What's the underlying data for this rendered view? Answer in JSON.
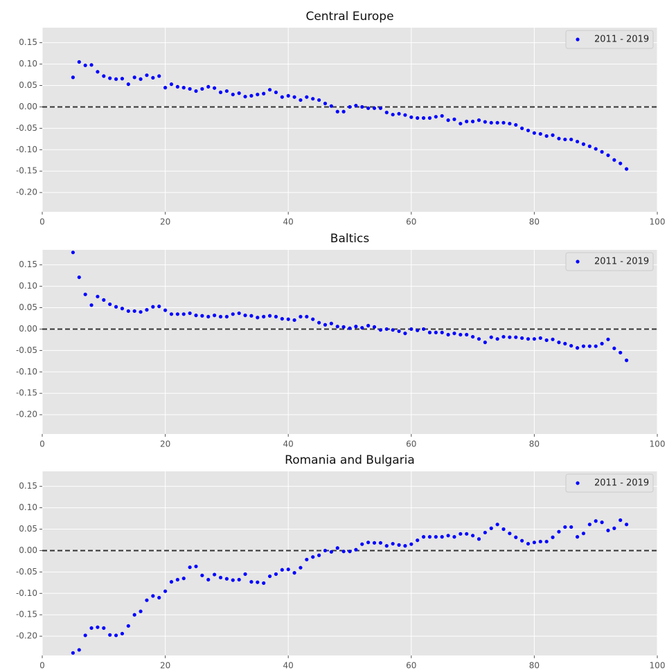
{
  "chart_data": [
    {
      "type": "scatter",
      "title": "Central Europe",
      "x": [
        5,
        6,
        7,
        8,
        9,
        10,
        11,
        12,
        13,
        14,
        15,
        16,
        17,
        18,
        19,
        20,
        21,
        22,
        23,
        24,
        25,
        26,
        27,
        28,
        29,
        30,
        31,
        32,
        33,
        34,
        35,
        36,
        37,
        38,
        39,
        40,
        41,
        42,
        43,
        44,
        45,
        46,
        47,
        48,
        49,
        50,
        51,
        52,
        53,
        54,
        55,
        56,
        57,
        58,
        59,
        60,
        61,
        62,
        63,
        64,
        65,
        66,
        67,
        68,
        69,
        70,
        71,
        72,
        73,
        74,
        75,
        76,
        77,
        78,
        79,
        80,
        81,
        82,
        83,
        84,
        85,
        86,
        87,
        88,
        89,
        90,
        91,
        92,
        93,
        94,
        95
      ],
      "series": [
        {
          "name": "2011 - 2019",
          "color": "#0000ff",
          "values": [
            0.069,
            0.105,
            0.097,
            0.098,
            0.082,
            0.072,
            0.067,
            0.065,
            0.066,
            0.053,
            0.069,
            0.065,
            0.074,
            0.068,
            0.072,
            0.045,
            0.053,
            0.047,
            0.045,
            0.042,
            0.037,
            0.042,
            0.047,
            0.044,
            0.034,
            0.037,
            0.029,
            0.032,
            0.024,
            0.026,
            0.029,
            0.031,
            0.04,
            0.034,
            0.023,
            0.026,
            0.023,
            0.016,
            0.023,
            0.019,
            0.016,
            0.008,
            0.002,
            -0.011,
            -0.011,
            0.0,
            0.003,
            0.0,
            -0.003,
            -0.003,
            -0.003,
            -0.013,
            -0.018,
            -0.016,
            -0.019,
            -0.024,
            -0.026,
            -0.026,
            -0.026,
            -0.023,
            -0.021,
            -0.031,
            -0.029,
            -0.039,
            -0.034,
            -0.034,
            -0.031,
            -0.035,
            -0.037,
            -0.037,
            -0.037,
            -0.039,
            -0.042,
            -0.05,
            -0.055,
            -0.061,
            -0.063,
            -0.068,
            -0.066,
            -0.074,
            -0.076,
            -0.076,
            -0.081,
            -0.087,
            -0.092,
            -0.098,
            -0.105,
            -0.113,
            -0.124,
            -0.132,
            -0.145
          ]
        }
      ],
      "xlim": [
        0,
        100
      ],
      "ylim": [
        -0.245,
        0.185
      ],
      "xticks": [
        0,
        20,
        40,
        60,
        80,
        100
      ],
      "yticks": [
        {
          "value": -0.2,
          "label": "-0.20"
        },
        -0.15,
        {
          "value": -0.1,
          "label": "-0.10"
        },
        -0.05,
        {
          "value": 0,
          "label": "0.00"
        },
        0.05,
        {
          "value": 0.1,
          "label": "0.10"
        },
        0.15
      ],
      "grid": true,
      "legend": "upper right",
      "hline": 0
    },
    {
      "type": "scatter",
      "title": "Baltics",
      "x": [
        5,
        6,
        7,
        8,
        9,
        10,
        11,
        12,
        13,
        14,
        15,
        16,
        17,
        18,
        19,
        20,
        21,
        22,
        23,
        24,
        25,
        26,
        27,
        28,
        29,
        30,
        31,
        32,
        33,
        34,
        35,
        36,
        37,
        38,
        39,
        40,
        41,
        42,
        43,
        44,
        45,
        46,
        47,
        48,
        49,
        50,
        51,
        52,
        53,
        54,
        55,
        56,
        57,
        58,
        59,
        60,
        61,
        62,
        63,
        64,
        65,
        66,
        67,
        68,
        69,
        70,
        71,
        72,
        73,
        74,
        75,
        76,
        77,
        78,
        79,
        80,
        81,
        82,
        83,
        84,
        85,
        86,
        87,
        88,
        89,
        90,
        91,
        92,
        93,
        94,
        95
      ],
      "series": [
        {
          "name": "2011 - 2019",
          "color": "#0000ff",
          "values": [
            0.179,
            0.121,
            0.081,
            0.056,
            0.076,
            0.068,
            0.058,
            0.052,
            0.048,
            0.042,
            0.042,
            0.04,
            0.045,
            0.052,
            0.053,
            0.044,
            0.035,
            0.035,
            0.035,
            0.037,
            0.032,
            0.031,
            0.029,
            0.032,
            0.029,
            0.029,
            0.035,
            0.037,
            0.032,
            0.031,
            0.027,
            0.029,
            0.031,
            0.029,
            0.024,
            0.023,
            0.021,
            0.029,
            0.029,
            0.023,
            0.015,
            0.01,
            0.013,
            0.006,
            0.005,
            0.002,
            0.006,
            0.003,
            0.008,
            0.005,
            -0.002,
            0.0,
            -0.002,
            -0.005,
            -0.01,
            0.0,
            -0.003,
            0.0,
            -0.008,
            -0.008,
            -0.008,
            -0.013,
            -0.01,
            -0.013,
            -0.013,
            -0.018,
            -0.023,
            -0.031,
            -0.019,
            -0.023,
            -0.018,
            -0.019,
            -0.019,
            -0.021,
            -0.023,
            -0.023,
            -0.021,
            -0.026,
            -0.024,
            -0.031,
            -0.034,
            -0.039,
            -0.044,
            -0.04,
            -0.04,
            -0.04,
            -0.034,
            -0.024,
            -0.045,
            -0.055,
            -0.073
          ]
        }
      ],
      "xlim": [
        0,
        100
      ],
      "ylim": [
        -0.245,
        0.185
      ],
      "xticks": [
        0,
        20,
        40,
        60,
        80,
        100
      ],
      "yticks": [
        {
          "value": -0.2,
          "label": "-0.20"
        },
        -0.15,
        {
          "value": -0.1,
          "label": "-0.10"
        },
        -0.05,
        {
          "value": 0,
          "label": "0.00"
        },
        0.05,
        {
          "value": 0.1,
          "label": "0.10"
        },
        0.15
      ],
      "grid": true,
      "legend": "upper right",
      "hline": 0
    },
    {
      "type": "scatter",
      "title": "Romania and Bulgaria",
      "x": [
        5,
        6,
        7,
        8,
        9,
        10,
        11,
        12,
        13,
        14,
        15,
        16,
        17,
        18,
        19,
        20,
        21,
        22,
        23,
        24,
        25,
        26,
        27,
        28,
        29,
        30,
        31,
        32,
        33,
        34,
        35,
        36,
        37,
        38,
        39,
        40,
        41,
        42,
        43,
        44,
        45,
        46,
        47,
        48,
        49,
        50,
        51,
        52,
        53,
        54,
        55,
        56,
        57,
        58,
        59,
        60,
        61,
        62,
        63,
        64,
        65,
        66,
        67,
        68,
        69,
        70,
        71,
        72,
        73,
        74,
        75,
        76,
        77,
        78,
        79,
        80,
        81,
        82,
        83,
        84,
        85,
        86,
        87,
        88,
        89,
        90,
        91,
        92,
        93,
        94,
        95
      ],
      "series": [
        {
          "name": "2011 - 2019",
          "color": "#0000ff",
          "values": [
            -0.239,
            -0.232,
            -0.198,
            -0.181,
            -0.179,
            -0.181,
            -0.197,
            -0.198,
            -0.194,
            -0.176,
            -0.15,
            -0.142,
            -0.116,
            -0.106,
            -0.11,
            -0.095,
            -0.073,
            -0.068,
            -0.065,
            -0.039,
            -0.037,
            -0.058,
            -0.068,
            -0.056,
            -0.063,
            -0.066,
            -0.069,
            -0.068,
            -0.055,
            -0.073,
            -0.074,
            -0.076,
            -0.06,
            -0.055,
            -0.045,
            -0.044,
            -0.052,
            -0.04,
            -0.021,
            -0.015,
            -0.011,
            0.0,
            -0.003,
            0.006,
            -0.002,
            -0.002,
            0.002,
            0.015,
            0.019,
            0.018,
            0.018,
            0.011,
            0.016,
            0.013,
            0.011,
            0.015,
            0.024,
            0.032,
            0.032,
            0.032,
            0.032,
            0.035,
            0.032,
            0.039,
            0.039,
            0.035,
            0.027,
            0.042,
            0.052,
            0.061,
            0.05,
            0.04,
            0.031,
            0.023,
            0.016,
            0.019,
            0.021,
            0.021,
            0.031,
            0.044,
            0.055,
            0.055,
            0.032,
            0.04,
            0.061,
            0.069,
            0.066,
            0.047,
            0.052,
            0.071,
            0.061
          ]
        }
      ],
      "xlim": [
        0,
        100
      ],
      "ylim": [
        -0.245,
        0.185
      ],
      "xticks": [
        0,
        20,
        40,
        60,
        80,
        100
      ],
      "yticks": [
        {
          "value": -0.2,
          "label": "-0.20"
        },
        -0.15,
        {
          "value": -0.1,
          "label": "-0.10"
        },
        -0.05,
        {
          "value": 0,
          "label": "0.00"
        },
        0.05,
        {
          "value": 0.1,
          "label": "0.10"
        },
        0.15
      ],
      "grid": true,
      "legend": "upper right",
      "hline": 0
    }
  ]
}
